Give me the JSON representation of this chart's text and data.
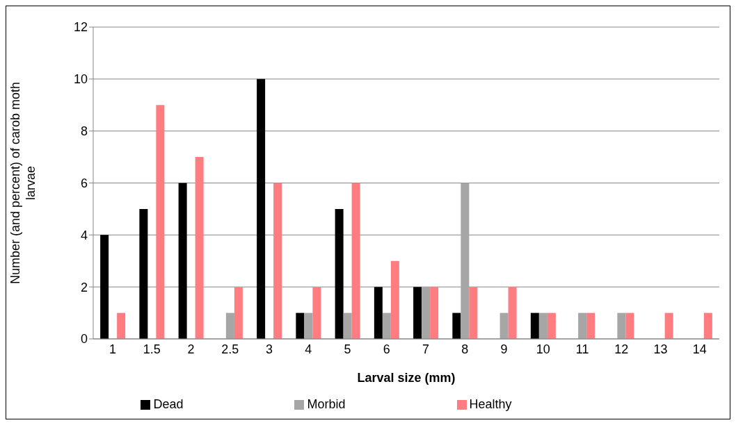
{
  "chart_data": {
    "type": "bar",
    "xlabel": "Larval size (mm)",
    "ylabel": "Number (and percent) of carob moth larvae",
    "categories": [
      "1",
      "1.5",
      "2",
      "2.5",
      "3",
      "4",
      "5",
      "6",
      "7",
      "8",
      "9",
      "10",
      "11",
      "12",
      "13",
      "14"
    ],
    "series": [
      {
        "name": "Dead",
        "color": "#000000",
        "values": [
          4,
          5,
          6,
          0,
          10,
          1,
          5,
          2,
          2,
          1,
          0,
          1,
          0,
          0,
          0,
          0
        ]
      },
      {
        "name": "Morbid",
        "color": "#a6a6a6",
        "values": [
          0,
          0,
          0,
          1,
          0,
          1,
          1,
          1,
          2,
          6,
          1,
          1,
          1,
          1,
          0,
          0
        ]
      },
      {
        "name": "Healthy",
        "color": "#ff7c80",
        "values": [
          1,
          9,
          7,
          2,
          6,
          2,
          6,
          3,
          2,
          2,
          2,
          1,
          1,
          1,
          1,
          1
        ]
      }
    ],
    "ylim": [
      0,
      12
    ],
    "yticks": [
      0,
      2,
      4,
      6,
      8,
      10,
      12
    ],
    "grid": "y",
    "legend": "bottom"
  }
}
